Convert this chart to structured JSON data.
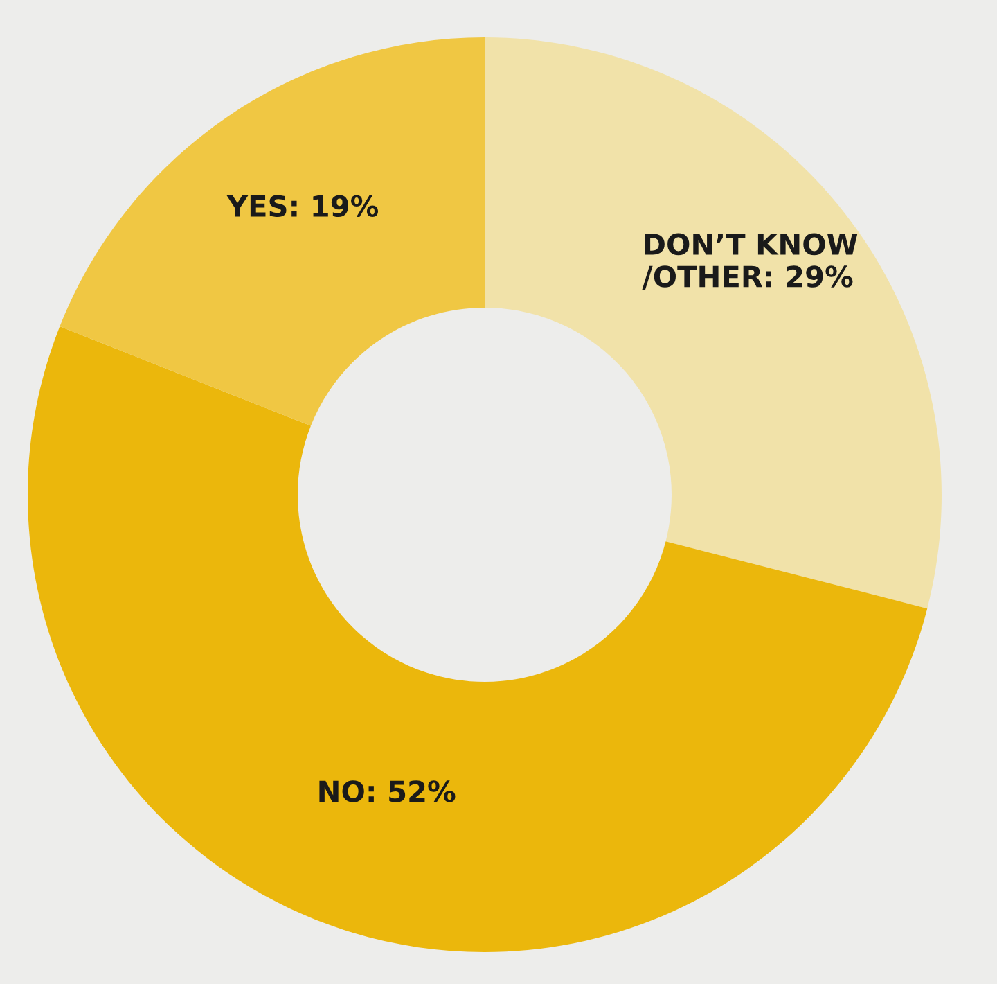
{
  "chart_data": {
    "type": "donut",
    "categories": [
      "DON’T KNOW\n/OTHER",
      "NO",
      "YES"
    ],
    "values": [
      29,
      52,
      19
    ],
    "value_labels": [
      "29%",
      "52%",
      "19%"
    ],
    "colors": [
      "#f1e2a9",
      "#ebb70c",
      "#f0c743"
    ]
  }
}
